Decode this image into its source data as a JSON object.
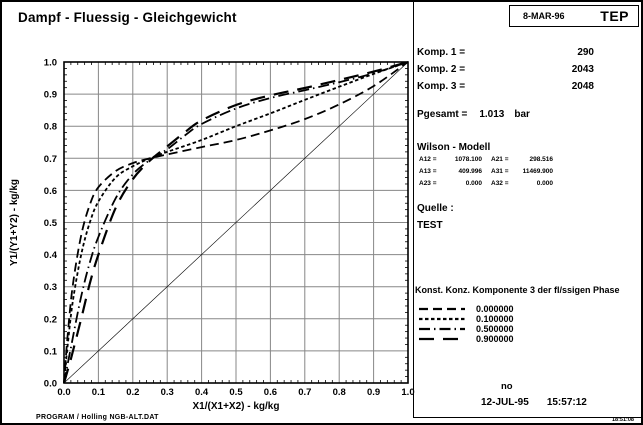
{
  "page": {
    "title": "Dampf - Fluessig - Gleichgewicht",
    "header_box": {
      "date": "8-MAR-96",
      "app": "TEP"
    },
    "footer": {
      "program": "PROGRAM / Holling   NGB-ALT.DAT",
      "timestamp_small": "18:51:08"
    }
  },
  "panel": {
    "components": [
      {
        "label": "Komp. 1 =",
        "value": "290"
      },
      {
        "label": "Komp. 2 =",
        "value": "2043"
      },
      {
        "label": "Komp. 3 =",
        "value": "2048"
      }
    ],
    "pressure": {
      "label": "Pgesamt =",
      "value": "1.013",
      "unit": "bar"
    },
    "model": {
      "title": "Wilson - Modell",
      "params": [
        {
          "l1": "A12 =",
          "v1": "1078.100",
          "l2": "A21 =",
          "v2": "298.516"
        },
        {
          "l1": "A13 =",
          "v1": "409.996",
          "l2": "A31 =",
          "v2": "11469.900"
        },
        {
          "l1": "A23 =",
          "v1": "0.000",
          "l2": "A32 =",
          "v2": "0.000"
        }
      ]
    },
    "source": {
      "label": "Quelle :",
      "value": "TEST"
    },
    "legend": {
      "title": "Konst. Konz. Komponente 3 der fl/ssigen Phase"
    },
    "status": {
      "note": "no",
      "date": "12-JUL-95",
      "time": "15:57:12"
    }
  },
  "chart_data": {
    "type": "line",
    "title": "",
    "xlabel": "X1/(X1+X2) - kg/kg",
    "ylabel": "Y1/(Y1+Y2) - kg/kg",
    "xlim": [
      0,
      1
    ],
    "ylim": [
      0,
      1
    ],
    "xticks": [
      "0.0",
      "0.1",
      "0.2",
      "0.3",
      "0.4",
      "0.5",
      "0.6",
      "0.7",
      "0.8",
      "0.9",
      "1.0"
    ],
    "yticks": [
      "0.0",
      "0.1",
      "0.2",
      "0.3",
      "0.4",
      "0.5",
      "0.6",
      "0.7",
      "0.8",
      "0.9",
      "1.0"
    ],
    "grid": true,
    "legend_position": "right-panel",
    "series": [
      {
        "name": "0.000000",
        "legend": true,
        "dash": "9 5",
        "width": 1.8,
        "x": [
          0,
          0.01,
          0.025,
          0.05,
          0.075,
          0.1,
          0.15,
          0.2,
          0.25,
          0.3,
          0.4,
          0.5,
          0.6,
          0.7,
          0.8,
          0.9,
          1.0
        ],
        "y": [
          0,
          0.14,
          0.3,
          0.46,
          0.555,
          0.61,
          0.66,
          0.685,
          0.7,
          0.712,
          0.735,
          0.757,
          0.787,
          0.822,
          0.868,
          0.925,
          1.0
        ]
      },
      {
        "name": "0.100000",
        "legend": true,
        "dash": "3.5 2.5",
        "width": 1.8,
        "x": [
          0,
          0.01,
          0.025,
          0.05,
          0.075,
          0.1,
          0.15,
          0.2,
          0.25,
          0.3,
          0.4,
          0.5,
          0.6,
          0.7,
          0.8,
          0.9,
          1.0
        ],
        "y": [
          0,
          0.11,
          0.25,
          0.4,
          0.5,
          0.565,
          0.64,
          0.675,
          0.7,
          0.72,
          0.757,
          0.8,
          0.84,
          0.882,
          0.923,
          0.963,
          1.0
        ]
      },
      {
        "name": "0.500000",
        "legend": true,
        "dash": "11 4 1.5 4",
        "width": 1.8,
        "x": [
          0,
          0.02,
          0.05,
          0.075,
          0.1,
          0.15,
          0.2,
          0.25,
          0.3,
          0.35,
          0.4,
          0.5,
          0.6,
          0.7,
          0.8,
          0.9,
          1.0
        ],
        "y": [
          0,
          0.11,
          0.27,
          0.375,
          0.455,
          0.575,
          0.65,
          0.695,
          0.728,
          0.77,
          0.807,
          0.855,
          0.888,
          0.912,
          0.937,
          0.965,
          1.0
        ]
      },
      {
        "name": "0.900000",
        "legend": true,
        "dash": "15 9",
        "width": 2.2,
        "x": [
          0,
          0.02,
          0.05,
          0.075,
          0.1,
          0.15,
          0.2,
          0.25,
          0.3,
          0.35,
          0.4,
          0.5,
          0.6,
          0.7,
          0.8,
          0.9,
          1.0
        ],
        "y": [
          0,
          0.075,
          0.2,
          0.31,
          0.4,
          0.545,
          0.635,
          0.693,
          0.737,
          0.78,
          0.818,
          0.866,
          0.896,
          0.919,
          0.944,
          0.97,
          1.0
        ]
      },
      {
        "name": "diagonal",
        "legend": false,
        "dash": "",
        "width": 0.6,
        "x": [
          0,
          1
        ],
        "y": [
          0,
          1
        ]
      }
    ]
  }
}
